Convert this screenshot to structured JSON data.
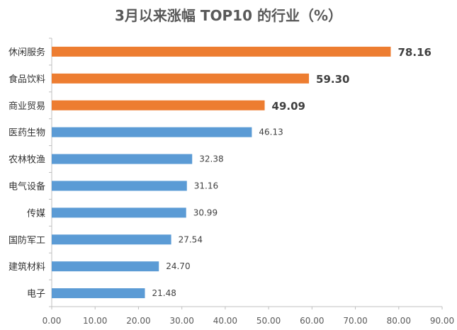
{
  "chart_data": {
    "type": "bar",
    "orientation": "horizontal",
    "title": "3月以来涨幅 TOP10 的行业（%）",
    "categories": [
      "休闲服务",
      "食品饮料",
      "商业贸易",
      "医药生物",
      "农林牧渔",
      "电气设备",
      "传媒",
      "国防军工",
      "建筑材料",
      "电子"
    ],
    "values": [
      78.16,
      59.3,
      49.09,
      46.13,
      32.38,
      31.16,
      30.99,
      27.54,
      24.7,
      21.48
    ],
    "value_labels": [
      "78.16",
      "59.30",
      "49.09",
      "46.13",
      "32.38",
      "31.16",
      "30.99",
      "27.54",
      "24.70",
      "21.48"
    ],
    "highlighted": [
      true,
      true,
      true,
      false,
      false,
      false,
      false,
      false,
      false,
      false
    ],
    "xlim": [
      0,
      90
    ],
    "x_ticks": [
      "0.00",
      "10.00",
      "20.00",
      "30.00",
      "40.00",
      "50.00",
      "60.00",
      "70.00",
      "80.00",
      "90.00"
    ],
    "xlabel": "",
    "ylabel": "",
    "grid": false,
    "colors": {
      "highlight_bar": "#ED7D31",
      "normal_bar": "#5B9BD5",
      "highlight_label": "#FF0000",
      "normal_label": "#404040",
      "axis": "#BFBFBF"
    }
  }
}
